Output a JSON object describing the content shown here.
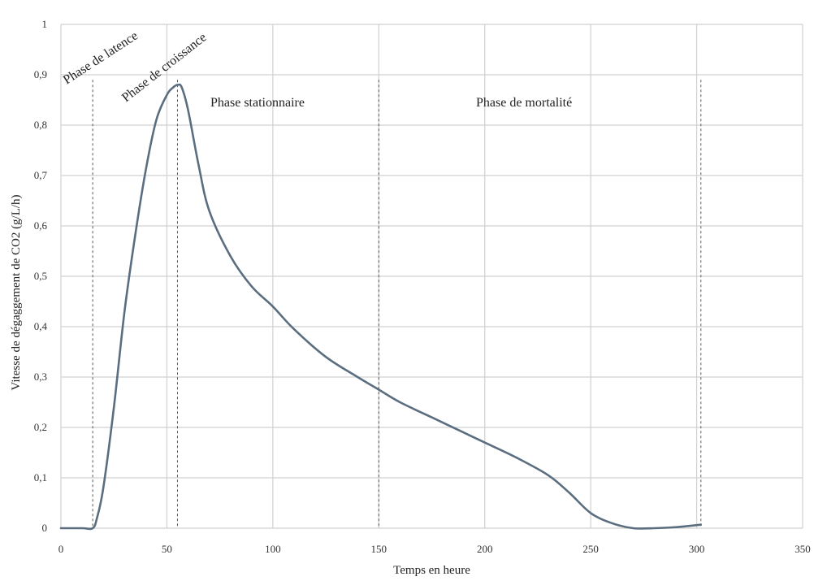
{
  "chart_data": {
    "type": "line",
    "title": "",
    "xlabel": "Temps en heure",
    "ylabel": "Vitesse de dégaggement de CO2  (g/L/h)",
    "xlim": [
      0,
      350
    ],
    "ylim": [
      0,
      1
    ],
    "x_ticks": [
      0,
      50,
      100,
      150,
      200,
      250,
      300,
      350
    ],
    "y_ticks": [
      0,
      0.1,
      0.2,
      0.3,
      0.4,
      0.5,
      0.6,
      0.7,
      0.8,
      0.9,
      1
    ],
    "x_tick_labels": [
      "0",
      "50",
      "100",
      "150",
      "200",
      "250",
      "300",
      "350"
    ],
    "y_tick_labels": [
      "0",
      "0,1",
      "0,2",
      "0,3",
      "0,4",
      "0,5",
      "0,6",
      "0,7",
      "0,8",
      "0,9",
      "1"
    ],
    "grid": true,
    "series": [
      {
        "color": "#5a6e80",
        "x": [
          0,
          10,
          15,
          17,
          20,
          25,
          30,
          35,
          40,
          45,
          50,
          53,
          55,
          57,
          60,
          65,
          70,
          80,
          90,
          100,
          110,
          125,
          140,
          150,
          160,
          175,
          190,
          200,
          215,
          230,
          240,
          250,
          260,
          270,
          280,
          290,
          302
        ],
        "y": [
          0,
          0,
          0,
          0.02,
          0.08,
          0.24,
          0.43,
          0.58,
          0.71,
          0.81,
          0.86,
          0.875,
          0.88,
          0.875,
          0.83,
          0.72,
          0.63,
          0.54,
          0.48,
          0.44,
          0.395,
          0.34,
          0.3,
          0.275,
          0.25,
          0.22,
          0.19,
          0.17,
          0.14,
          0.105,
          0.07,
          0.03,
          0.01,
          0.0,
          0.0,
          0.002,
          0.007
        ]
      }
    ],
    "phase_boundaries": [
      15,
      55,
      150,
      302
    ],
    "annotations": {
      "latence": "Phase de latence",
      "croissance": "Phase de croissance",
      "stationnaire": "Phase stationnaire",
      "mortalite": "Phase de mortalité"
    }
  }
}
